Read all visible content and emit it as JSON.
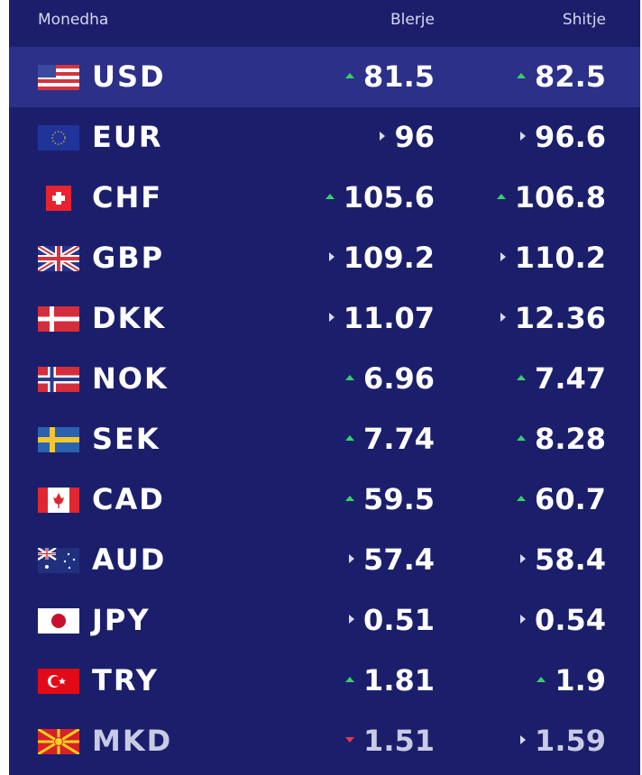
{
  "header": {
    "currency": "Monedha",
    "buy": "Blerje",
    "sell": "Shitje"
  },
  "colors": {
    "background": "#1b1f6b",
    "highlight_row": "#2c3088",
    "up": "#35d06a",
    "down": "#e53a4a",
    "neutral": "#d8daf0"
  },
  "rates": [
    {
      "code": "USD",
      "flag": "us-flag-icon",
      "buy": "81.5",
      "buy_trend": "up",
      "sell": "82.5",
      "sell_trend": "up"
    },
    {
      "code": "EUR",
      "flag": "eu-flag-icon",
      "buy": "96",
      "buy_trend": "right",
      "sell": "96.6",
      "sell_trend": "right"
    },
    {
      "code": "CHF",
      "flag": "ch-flag-icon",
      "buy": "105.6",
      "buy_trend": "up",
      "sell": "106.8",
      "sell_trend": "up"
    },
    {
      "code": "GBP",
      "flag": "gb-flag-icon",
      "buy": "109.2",
      "buy_trend": "right",
      "sell": "110.2",
      "sell_trend": "right"
    },
    {
      "code": "DKK",
      "flag": "dk-flag-icon",
      "buy": "11.07",
      "buy_trend": "right",
      "sell": "12.36",
      "sell_trend": "right"
    },
    {
      "code": "NOK",
      "flag": "no-flag-icon",
      "buy": "6.96",
      "buy_trend": "up",
      "sell": "7.47",
      "sell_trend": "up"
    },
    {
      "code": "SEK",
      "flag": "se-flag-icon",
      "buy": "7.74",
      "buy_trend": "up",
      "sell": "8.28",
      "sell_trend": "up"
    },
    {
      "code": "CAD",
      "flag": "ca-flag-icon",
      "buy": "59.5",
      "buy_trend": "up",
      "sell": "60.7",
      "sell_trend": "up"
    },
    {
      "code": "AUD",
      "flag": "au-flag-icon",
      "buy": "57.4",
      "buy_trend": "right",
      "sell": "58.4",
      "sell_trend": "right"
    },
    {
      "code": "JPY",
      "flag": "jp-flag-icon",
      "buy": "0.51",
      "buy_trend": "right",
      "sell": "0.54",
      "sell_trend": "right"
    },
    {
      "code": "TRY",
      "flag": "tr-flag-icon",
      "buy": "1.81",
      "buy_trend": "up",
      "sell": "1.9",
      "sell_trend": "up"
    },
    {
      "code": "MKD",
      "flag": "mk-flag-icon",
      "buy": "1.51",
      "buy_trend": "down",
      "sell": "1.59",
      "sell_trend": "right"
    }
  ]
}
